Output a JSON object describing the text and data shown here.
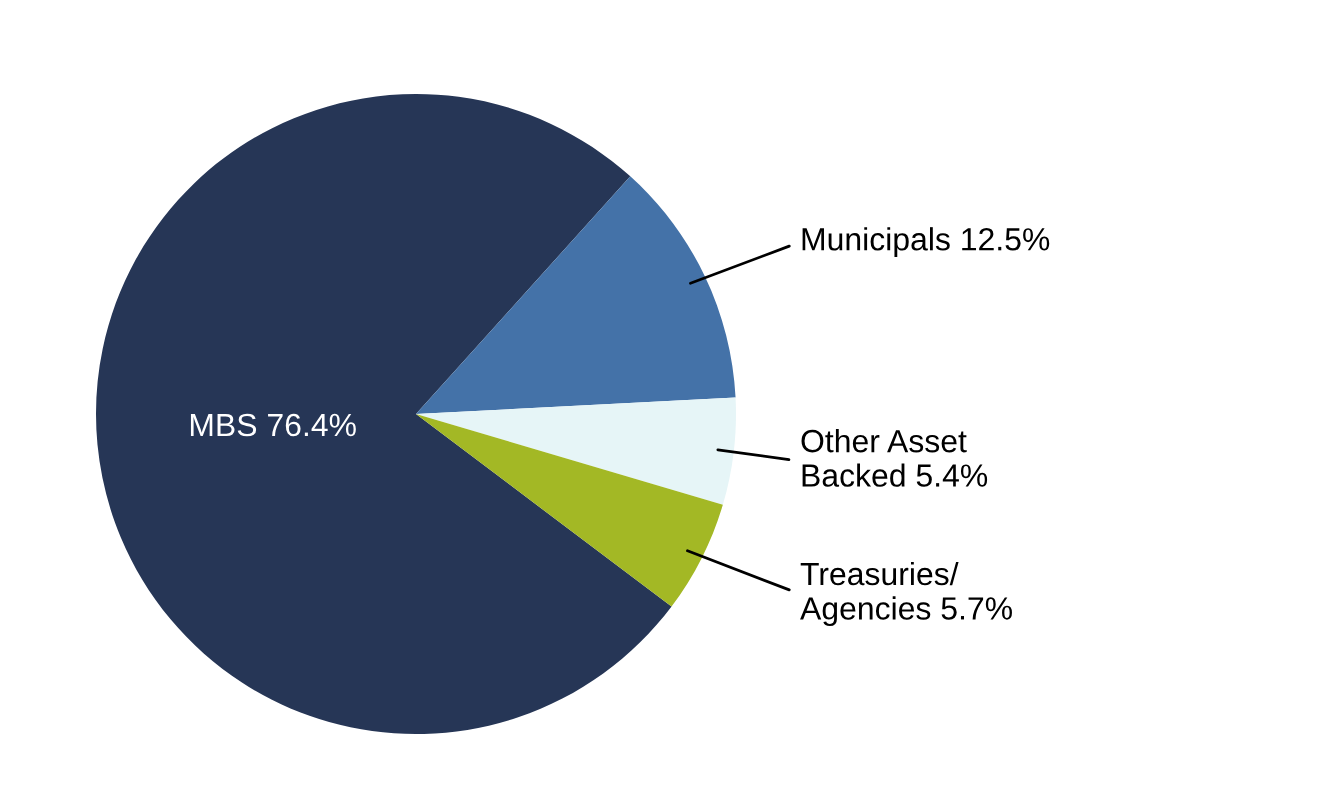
{
  "chart_data": {
    "type": "pie",
    "categories": [
      "MBS",
      "Municipals",
      "Other Asset\nBacked",
      "Treasuries/\nAgencies"
    ],
    "values": [
      76.4,
      12.5,
      5.4,
      5.7
    ],
    "colors": [
      "#263656",
      "#4472a8",
      "#e6f5f7",
      "#a3b825"
    ],
    "value_labels": [
      "76.4%",
      "12.5%",
      "5.4%",
      "5.7%"
    ]
  }
}
